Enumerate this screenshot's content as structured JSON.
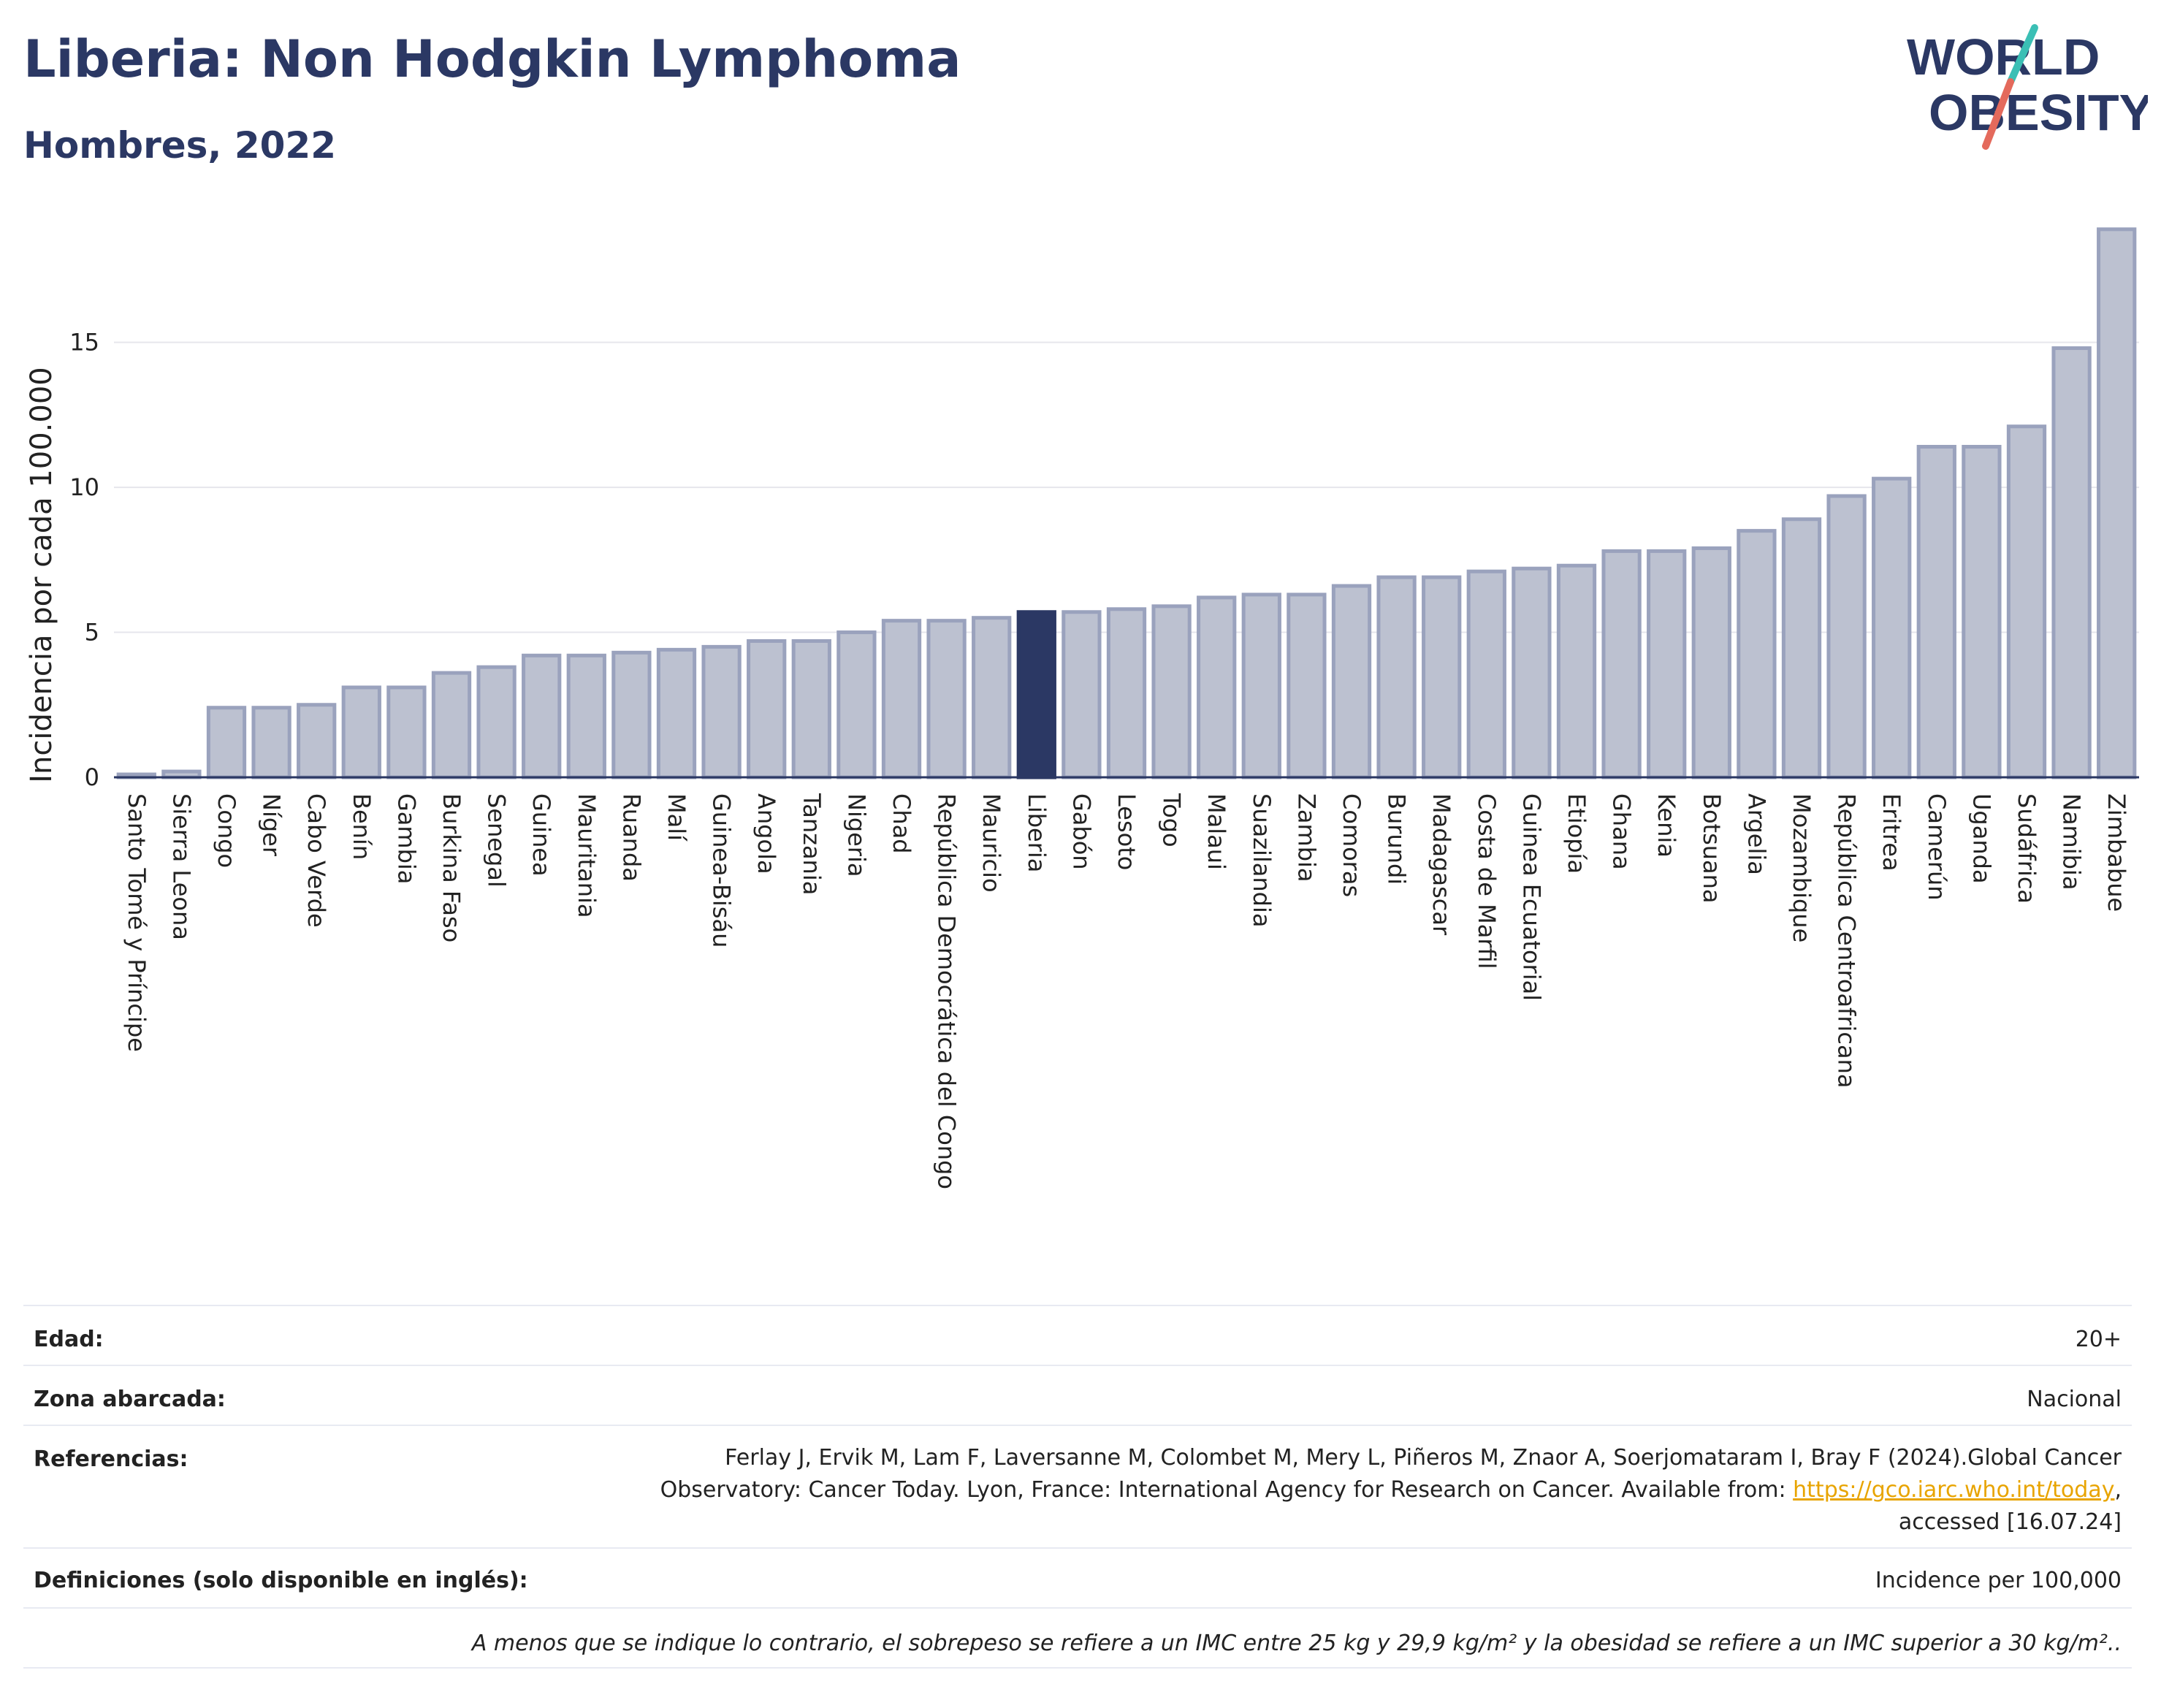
{
  "title": "Liberia: Non Hodgkin Lymphoma",
  "subtitle": "Hombres, 2022",
  "logo": {
    "line1": "WORLD",
    "line2": "OBESITY",
    "primary_color": "#2b3864",
    "accent_teal": "#3bbfb5",
    "accent_red": "#e46a5c"
  },
  "chart_data": {
    "type": "bar",
    "ylabel": "Incidencia por cada 100.000",
    "ylim": [
      0,
      19.5
    ],
    "yticks": [
      0,
      5,
      10,
      15
    ],
    "grid": true,
    "highlight": "Liberia",
    "bar_color": "#bcc1d0",
    "bar_edge_color": "#9aa2bd",
    "highlight_color": "#2b3864",
    "categories": [
      "Santo Tomé y Príncipe",
      "Sierra Leona",
      "Congo",
      "Níger",
      "Cabo Verde",
      "Benín",
      "Gambia",
      "Burkina Faso",
      "Senegal",
      "Guinea",
      "Mauritania",
      "Ruanda",
      "Malí",
      "Guinea-Bisáu",
      "Angola",
      "Tanzania",
      "Nigeria",
      "Chad",
      "República Democrática del Congo",
      "Mauricio",
      "Liberia",
      "Gabón",
      "Lesoto",
      "Togo",
      "Malaui",
      "Suazilandia",
      "Zambia",
      "Comoras",
      "Burundi",
      "Madagascar",
      "Costa de Marfil",
      "Guinea Ecuatorial",
      "Etiopía",
      "Ghana",
      "Kenia",
      "Botsuana",
      "Argelia",
      "Mozambique",
      "República Centroafricana",
      "Eritrea",
      "Camerún",
      "Uganda",
      "Sudáfrica",
      "Namibia",
      "Zimbabue"
    ],
    "values": [
      0.1,
      0.2,
      2.4,
      2.4,
      2.5,
      3.1,
      3.1,
      3.6,
      3.8,
      4.2,
      4.2,
      4.3,
      4.4,
      4.5,
      4.7,
      4.7,
      5.0,
      5.4,
      5.4,
      5.5,
      5.7,
      5.7,
      5.8,
      5.9,
      6.2,
      6.3,
      6.3,
      6.6,
      6.9,
      6.9,
      7.1,
      7.2,
      7.3,
      7.8,
      7.8,
      7.9,
      8.5,
      8.9,
      9.7,
      10.3,
      11.4,
      11.4,
      12.1,
      14.8,
      18.9
    ]
  },
  "metadata": {
    "rows": [
      {
        "label": "Edad:",
        "value": "20+"
      },
      {
        "label": "Zona abarcada:",
        "value": "Nacional"
      },
      {
        "label": "Referencias:",
        "value_lines": [
          "Ferlay J, Ervik M, Lam F, Laversanne M, Colombet M, Mery L, Piñeros M, Znaor A, Soerjomataram I, Bray F (2024).Global Cancer",
          "Observatory: Cancer Today. Lyon, France: International Agency for Research on Cancer. Available from: "
        ],
        "link": "https://gco.iarc.who.int/today",
        "link_suffix": ",",
        "value_end": "accessed [16.07.24]"
      },
      {
        "label": "Definiciones (solo disponible en inglés):",
        "value": "Incidence per 100,000"
      }
    ],
    "note": "A menos que se indique lo contrario, el sobrepeso se refiere a un IMC entre 25 kg y 29,9 kg/m² y la obesidad se refiere a un IMC superior a 30 kg/m².."
  }
}
